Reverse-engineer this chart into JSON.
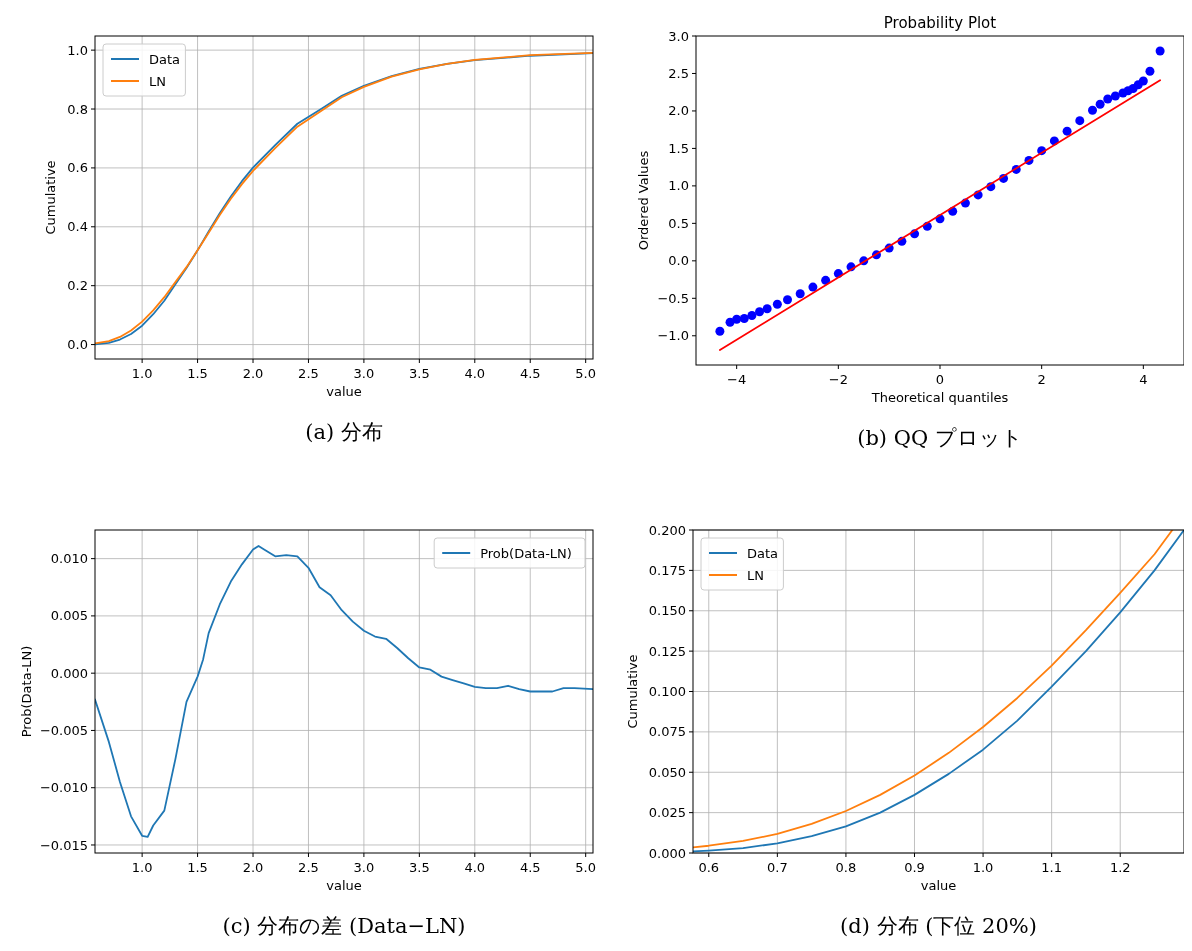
{
  "chart_data": [
    {
      "type": "line",
      "xlabel": "value",
      "ylabel": "Cumulative",
      "annotations": [
        "(a) 分布"
      ],
      "grid": true,
      "legend": "top left",
      "xlim": [
        0.575,
        5.066
      ],
      "ylim": [
        -0.049,
        1.048
      ],
      "xticks": [
        {
          "value": 1,
          "label": "1.0"
        },
        1.5,
        {
          "value": 2,
          "label": "2.0"
        },
        2.5,
        {
          "value": 3,
          "label": "3.0"
        },
        3.5,
        {
          "value": 4,
          "label": "4.0"
        },
        4.5,
        {
          "value": 5,
          "label": "5.0"
        }
      ],
      "yticks": [
        {
          "value": 0,
          "label": "0.0"
        },
        0.2,
        0.4,
        0.6,
        0.8,
        {
          "value": 1,
          "label": "1.0"
        }
      ],
      "series": [
        {
          "name": "Data",
          "color": "#1f77b4",
          "x": [
            0.575,
            0.7,
            0.8,
            0.9,
            1.0,
            1.1,
            1.2,
            1.3,
            1.4,
            1.5,
            1.6,
            1.7,
            1.8,
            1.9,
            2.0,
            2.2,
            2.4,
            2.6,
            2.8,
            3.0,
            3.25,
            3.5,
            3.75,
            4.0,
            4.5,
            5.066
          ],
          "values": [
            0.001,
            0.006,
            0.017,
            0.036,
            0.064,
            0.103,
            0.149,
            0.205,
            0.26,
            0.32,
            0.384,
            0.446,
            0.503,
            0.555,
            0.601,
            0.677,
            0.75,
            0.797,
            0.845,
            0.879,
            0.912,
            0.936,
            0.953,
            0.966,
            0.981,
            0.99
          ]
        },
        {
          "name": "LN",
          "color": "#ff7f0e",
          "x": [
            0.575,
            0.7,
            0.8,
            0.9,
            1.0,
            1.1,
            1.2,
            1.3,
            1.4,
            1.5,
            1.6,
            1.7,
            1.8,
            1.9,
            2.0,
            2.2,
            2.4,
            2.6,
            2.8,
            3.0,
            3.25,
            3.5,
            3.75,
            4.0,
            4.5,
            5.066
          ],
          "values": [
            0.004,
            0.012,
            0.026,
            0.048,
            0.078,
            0.116,
            0.161,
            0.212,
            0.263,
            0.32,
            0.38,
            0.44,
            0.495,
            0.545,
            0.59,
            0.667,
            0.74,
            0.79,
            0.84,
            0.875,
            0.91,
            0.935,
            0.953,
            0.967,
            0.983,
            0.991
          ]
        }
      ]
    },
    {
      "type": "scatter",
      "title": "Probability Plot",
      "xlabel": "Theoretical quantiles",
      "ylabel": "Ordered Values",
      "annotations": [
        "(b) QQ プロット"
      ],
      "xlim": [
        -4.8,
        4.8
      ],
      "ylim": [
        -1.39,
        3.0
      ],
      "xticks": [
        {
          "value": -4,
          "label": "−4"
        },
        {
          "value": -2,
          "label": "−2"
        },
        0,
        2,
        4
      ],
      "yticks": [
        {
          "value": -1,
          "label": "−1.0"
        },
        {
          "value": -0.5,
          "label": "−0.5"
        },
        {
          "value": 0,
          "label": "0.0"
        },
        0.5,
        {
          "value": 1,
          "label": "1.0"
        },
        1.5,
        {
          "value": 2,
          "label": "2.0"
        },
        2.5,
        {
          "value": 3,
          "label": "3.0"
        }
      ],
      "series": [
        {
          "marker": "circle",
          "color": "#0000ff",
          "x": [
            -4.33,
            -4.13,
            -4.0,
            -3.85,
            -3.7,
            -3.55,
            -3.4,
            -3.2,
            -3.0,
            -2.75,
            -2.5,
            -2.25,
            -2.0,
            -1.75,
            -1.5,
            -1.25,
            -1.0,
            -0.75,
            -0.5,
            -0.25,
            0,
            0.25,
            0.5,
            0.75,
            1.0,
            1.25,
            1.5,
            1.75,
            2.0,
            2.25,
            2.5,
            2.75,
            3.0,
            3.15,
            3.3,
            3.45,
            3.6,
            3.7,
            3.8,
            3.9,
            4.0,
            4.13,
            4.33
          ],
          "values": [
            -0.94,
            -0.82,
            -0.78,
            -0.77,
            -0.73,
            -0.68,
            -0.64,
            -0.58,
            -0.52,
            -0.44,
            -0.35,
            -0.26,
            -0.17,
            -0.08,
            0.0,
            0.08,
            0.17,
            0.26,
            0.36,
            0.46,
            0.56,
            0.66,
            0.77,
            0.88,
            0.99,
            1.1,
            1.22,
            1.34,
            1.47,
            1.6,
            1.73,
            1.87,
            2.01,
            2.09,
            2.16,
            2.2,
            2.24,
            2.27,
            2.3,
            2.35,
            2.4,
            2.53,
            2.8
          ]
        },
        {
          "type": "line",
          "marker": "none",
          "color": "#ff0000",
          "x": [
            -4.33,
            4.33
          ],
          "values": [
            -1.19,
            2.41
          ]
        }
      ]
    },
    {
      "type": "line",
      "xlabel": "value",
      "ylabel": "Prob(Data-LN)",
      "annotations": [
        "(c) 分布の差 (Data−LN)"
      ],
      "grid": true,
      "legend": "top right",
      "xlim": [
        0.575,
        5.066
      ],
      "ylim": [
        -0.0157,
        0.0125
      ],
      "xticks": [
        {
          "value": 1,
          "label": "1.0"
        },
        1.5,
        {
          "value": 2,
          "label": "2.0"
        },
        2.5,
        {
          "value": 3,
          "label": "3.0"
        },
        3.5,
        {
          "value": 4,
          "label": "4.0"
        },
        4.5,
        {
          "value": 5,
          "label": "5.0"
        }
      ],
      "yticks": [
        {
          "value": -0.015,
          "label": "−0.015"
        },
        {
          "value": -0.01,
          "label": "−0.010"
        },
        {
          "value": -0.005,
          "label": "−0.005"
        },
        {
          "value": 0,
          "label": "0.000"
        },
        0.005,
        {
          "value": 0.01,
          "label": "0.010"
        }
      ],
      "series": [
        {
          "name": "Prob(Data-LN)",
          "color": "#1f77b4",
          "x": [
            0.575,
            0.7,
            0.8,
            0.9,
            1.0,
            1.05,
            1.1,
            1.2,
            1.3,
            1.4,
            1.5,
            1.55,
            1.6,
            1.7,
            1.8,
            1.9,
            2.0,
            2.05,
            2.1,
            2.2,
            2.3,
            2.4,
            2.5,
            2.6,
            2.7,
            2.8,
            2.9,
            3.0,
            3.1,
            3.2,
            3.3,
            3.4,
            3.5,
            3.6,
            3.7,
            3.8,
            3.9,
            4.0,
            4.1,
            4.2,
            4.3,
            4.4,
            4.5,
            4.6,
            4.7,
            4.8,
            4.9,
            5.066
          ],
          "values": [
            -0.0023,
            -0.006,
            -0.0095,
            -0.0125,
            -0.0142,
            -0.0143,
            -0.0133,
            -0.012,
            -0.0075,
            -0.0025,
            -0.0003,
            0.0012,
            0.0035,
            0.006,
            0.008,
            0.0095,
            0.0108,
            0.0111,
            0.0108,
            0.0102,
            0.0103,
            0.0102,
            0.0092,
            0.0075,
            0.0068,
            0.0055,
            0.0045,
            0.0037,
            0.0032,
            0.003,
            0.0022,
            0.0013,
            0.0005,
            0.0003,
            -0.0003,
            -0.0006,
            -0.0009,
            -0.0012,
            -0.0013,
            -0.0013,
            -0.0011,
            -0.0014,
            -0.0016,
            -0.0016,
            -0.0016,
            -0.0013,
            -0.0013,
            -0.0014
          ]
        }
      ]
    },
    {
      "type": "line",
      "xlabel": "value",
      "ylabel": "Cumulative",
      "annotations": [
        "(d) 分布 (下位 20%)"
      ],
      "grid": true,
      "legend": "top left",
      "xlim": [
        0.577,
        1.293
      ],
      "ylim": [
        0,
        0.2
      ],
      "xticks": [
        0.6,
        0.7,
        0.8,
        0.9,
        {
          "value": 1,
          "label": "1.0"
        },
        1.1,
        1.2
      ],
      "yticks": [
        {
          "value": 0,
          "label": "0.000"
        },
        0.025,
        {
          "value": 0.05,
          "label": "0.050"
        },
        0.075,
        {
          "value": 0.1,
          "label": "0.100"
        },
        0.125,
        {
          "value": 0.15,
          "label": "0.150"
        },
        0.175,
        {
          "value": 0.2,
          "label": "0.200"
        }
      ],
      "series": [
        {
          "name": "Data",
          "color": "#1f77b4",
          "x": [
            0.577,
            0.6,
            0.65,
            0.7,
            0.75,
            0.8,
            0.85,
            0.9,
            0.95,
            1.0,
            1.05,
            1.1,
            1.15,
            1.2,
            1.25,
            1.293
          ],
          "values": [
            0.001,
            0.0015,
            0.003,
            0.006,
            0.0105,
            0.0165,
            0.025,
            0.036,
            0.049,
            0.064,
            0.082,
            0.103,
            0.125,
            0.149,
            0.175,
            0.2
          ]
        },
        {
          "name": "LN",
          "color": "#ff7f0e",
          "x": [
            0.577,
            0.6,
            0.65,
            0.7,
            0.75,
            0.8,
            0.85,
            0.9,
            0.95,
            1.0,
            1.05,
            1.1,
            1.15,
            1.2,
            1.25,
            1.276
          ],
          "values": [
            0.0035,
            0.0045,
            0.0075,
            0.0118,
            0.018,
            0.026,
            0.036,
            0.048,
            0.062,
            0.078,
            0.096,
            0.116,
            0.138,
            0.161,
            0.185,
            0.2
          ]
        }
      ]
    }
  ]
}
